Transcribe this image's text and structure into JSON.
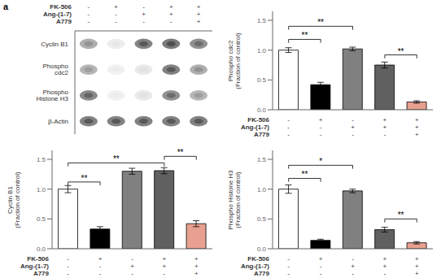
{
  "chart_data": [
    {
      "type": "heatmap",
      "title": "a",
      "y_categories": [
        "Cyclin B1",
        "Phospho cdc2",
        "Phospho Histone H3",
        "β-Actin"
      ],
      "cells": [
        [
          0.55,
          0.12,
          0.85,
          0.9,
          0.75
        ],
        [
          0.5,
          0.1,
          0.15,
          0.85,
          0.55
        ],
        [
          0.8,
          0.1,
          0.15,
          0.75,
          0.5
        ],
        [
          0.85,
          0.85,
          0.85,
          0.85,
          0.85
        ]
      ],
      "treatments": [
        {
          "name": "FK-506",
          "values": [
            "-",
            "+",
            "-",
            "+",
            "+"
          ]
        },
        {
          "name": "Ang-(1-7)",
          "values": [
            "-",
            "-",
            "+",
            "+",
            "+"
          ]
        },
        {
          "name": "A779",
          "values": [
            "-",
            "-",
            "-",
            "-",
            "+"
          ]
        }
      ]
    },
    {
      "type": "bar",
      "ylabel": "Phospho cdc2\n(Fraction of control)",
      "values": [
        1.0,
        0.42,
        1.02,
        0.75,
        0.13
      ],
      "errors": [
        0.04,
        0.04,
        0.03,
        0.05,
        0.02
      ],
      "colors": [
        "white",
        "black",
        "#808080",
        "#606060",
        "#E8A090"
      ],
      "ylim": [
        0,
        1.65
      ],
      "yticks": [
        {
          "value": 0.0,
          "label": "0.0"
        },
        0.5,
        {
          "value": 1.0,
          "label": "1.0"
        },
        1.5
      ],
      "significance": [
        {
          "bars": [
            0,
            1
          ],
          "label": "**",
          "y": 1.18
        },
        {
          "bars": [
            0,
            2
          ],
          "label": "**",
          "y": 1.4
        },
        {
          "bars": [
            3,
            4
          ],
          "label": "**",
          "y": 0.92
        }
      ],
      "treatments": [
        {
          "name": "FK-506",
          "values": [
            "-",
            "+",
            "-",
            "+",
            "+"
          ]
        },
        {
          "name": "Ang-(1-7)",
          "values": [
            "-",
            "-",
            "+",
            "+",
            "+"
          ]
        },
        {
          "name": "A779",
          "values": [
            "-",
            "-",
            "-",
            "-",
            "+"
          ]
        }
      ]
    },
    {
      "type": "bar",
      "ylabel": "Cyclin B1\n(Fraction of control)",
      "values": [
        1.0,
        0.33,
        1.3,
        1.31,
        0.42
      ],
      "errors": [
        0.06,
        0.04,
        0.05,
        0.05,
        0.05
      ],
      "colors": [
        "white",
        "black",
        "#808080",
        "#606060",
        "#E8A090"
      ],
      "ylim": [
        0,
        1.65
      ],
      "yticks": [
        {
          "value": 0.0,
          "label": "0.0"
        },
        0.5,
        {
          "value": 1.0,
          "label": "1.0"
        },
        1.5
      ],
      "significance": [
        {
          "bars": [
            0,
            1
          ],
          "label": "**",
          "y": 1.12
        },
        {
          "bars": [
            0,
            3
          ],
          "label": "**",
          "y": 1.44
        },
        {
          "bars": [
            3,
            4
          ],
          "label": "**",
          "y": 1.55
        }
      ],
      "treatments": [
        {
          "name": "FK-506",
          "values": [
            "-",
            "+",
            "-",
            "+",
            "+"
          ]
        },
        {
          "name": "Ang-(1-7)",
          "values": [
            "-",
            "-",
            "+",
            "+",
            "+"
          ]
        },
        {
          "name": "A779",
          "values": [
            "-",
            "-",
            "-",
            "-",
            "+"
          ]
        }
      ]
    },
    {
      "type": "bar",
      "ylabel": "Phospho Histone H3\n(Fraction of control)",
      "values": [
        1.0,
        0.14,
        0.97,
        0.32,
        0.1
      ],
      "errors": [
        0.07,
        0.02,
        0.03,
        0.04,
        0.02
      ],
      "colors": [
        "white",
        "black",
        "#808080",
        "#606060",
        "#E8A090"
      ],
      "ylim": [
        0,
        1.65
      ],
      "yticks": [
        {
          "value": 0.0,
          "label": "0.0"
        },
        0.5,
        {
          "value": 1.0,
          "label": "1.0"
        },
        1.5
      ],
      "significance": [
        {
          "bars": [
            0,
            1
          ],
          "label": "**",
          "y": 1.18
        },
        {
          "bars": [
            0,
            2
          ],
          "label": "*",
          "y": 1.4
        },
        {
          "bars": [
            3,
            4
          ],
          "label": "**",
          "y": 0.5
        }
      ],
      "treatments": [
        {
          "name": "FK-506",
          "values": [
            "-",
            "+",
            "-",
            "+",
            "+"
          ]
        },
        {
          "name": "Ang-(1-7)",
          "values": [
            "-",
            "-",
            "+",
            "+",
            "+"
          ]
        },
        {
          "name": "A779",
          "values": [
            "-",
            "-",
            "-",
            "-",
            "+"
          ]
        }
      ]
    }
  ]
}
